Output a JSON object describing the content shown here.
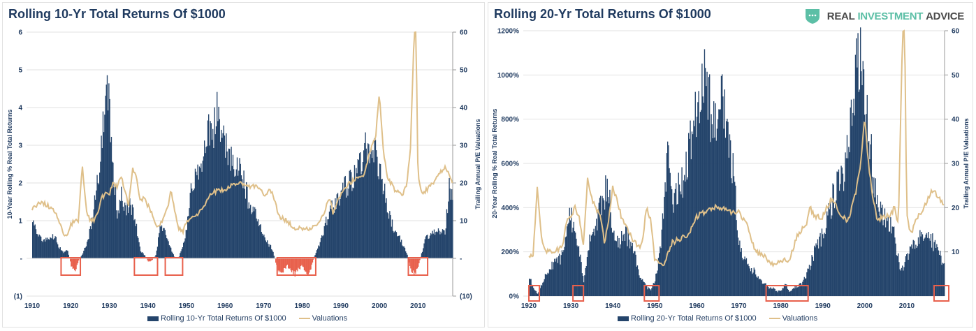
{
  "colors": {
    "bar": "#24446b",
    "negative": "#e8604c",
    "valuation": "#dfc08a",
    "title": "#1f3a5f",
    "grid": "#e2e2e2",
    "highlight_box": "#e8604c"
  },
  "logo": {
    "icon": "shield-chat-icon",
    "word1": "REAL",
    "word2": "INVESTMENT",
    "word3": "ADVICE"
  },
  "chart_data": [
    {
      "type": "bar",
      "title": "Rolling 10-Yr Total Returns Of $1000",
      "ylabel": "10-Year Rolling % Real Total Returns",
      "y2label": "Trailing Annual P/E Valuations",
      "ylim": [
        -1,
        6
      ],
      "y2lim": [
        -10,
        60
      ],
      "yticks": [
        "(1)",
        "-",
        "1",
        "2",
        "3",
        "4",
        "5",
        "6"
      ],
      "y2ticks": [
        "(10)",
        "-",
        "10",
        "20",
        "30",
        "40",
        "50",
        "60"
      ],
      "xticks": [
        "1910",
        "1920",
        "1930",
        "1940",
        "1950",
        "1960",
        "1970",
        "1980",
        "1990",
        "2000",
        "2010"
      ],
      "xlim": [
        1910,
        2019
      ],
      "grid": true,
      "legend_position": "bottom",
      "legend": [
        "Rolling 10-Yr Total Returns Of $1000",
        "Valuations"
      ],
      "series": [
        {
          "name": "Rolling 10-Yr Total Returns Of $1000",
          "kind": "bar",
          "x": [
            1910,
            1911,
            1912,
            1913,
            1914,
            1915,
            1916,
            1917,
            1918,
            1919,
            1920,
            1921,
            1922,
            1923,
            1924,
            1925,
            1926,
            1927,
            1928,
            1929,
            1930,
            1931,
            1932,
            1933,
            1934,
            1935,
            1936,
            1937,
            1938,
            1939,
            1940,
            1941,
            1942,
            1943,
            1944,
            1945,
            1946,
            1947,
            1948,
            1949,
            1950,
            1951,
            1952,
            1953,
            1954,
            1955,
            1956,
            1957,
            1958,
            1959,
            1960,
            1961,
            1962,
            1963,
            1964,
            1965,
            1966,
            1967,
            1968,
            1969,
            1970,
            1971,
            1972,
            1973,
            1974,
            1975,
            1976,
            1977,
            1978,
            1979,
            1980,
            1981,
            1982,
            1983,
            1984,
            1985,
            1986,
            1987,
            1988,
            1989,
            1990,
            1991,
            1992,
            1993,
            1994,
            1995,
            1996,
            1997,
            1998,
            1999,
            2000,
            2001,
            2002,
            2003,
            2004,
            2005,
            2006,
            2007,
            2008,
            2009,
            2010,
            2011,
            2012,
            2013,
            2014,
            2015,
            2016,
            2017,
            2018,
            2019
          ],
          "values": [
            1.0,
            0.75,
            0.55,
            0.5,
            0.5,
            0.6,
            0.55,
            0.3,
            0.15,
            0.25,
            -0.2,
            -0.4,
            -0.05,
            0.15,
            0.4,
            0.8,
            1.5,
            2.2,
            3.2,
            4.8,
            4.3,
            2.4,
            1.2,
            2.0,
            1.3,
            1.6,
            1.4,
            0.8,
            0.2,
            0.1,
            -0.1,
            -0.05,
            0.1,
            0.8,
            0.9,
            0.6,
            0.2,
            0.0,
            0.05,
            0.4,
            0.9,
            1.8,
            2.4,
            2.3,
            2.7,
            3.2,
            3.8,
            3.6,
            4.2,
            3.5,
            3.2,
            3.0,
            2.8,
            2.6,
            2.5,
            2.0,
            1.6,
            1.3,
            1.2,
            0.9,
            0.7,
            0.4,
            0.3,
            -0.1,
            -0.4,
            -0.35,
            -0.2,
            -0.35,
            -0.45,
            -0.3,
            -0.2,
            -0.45,
            -0.35,
            0.05,
            0.3,
            0.6,
            1.0,
            1.3,
            1.5,
            1.6,
            1.9,
            2.0,
            2.1,
            2.3,
            2.5,
            2.7,
            3.0,
            3.2,
            3.1,
            2.9,
            2.5,
            2.0,
            1.4,
            1.0,
            0.8,
            0.6,
            0.4,
            0.15,
            -0.3,
            -0.45,
            -0.2,
            0.2,
            0.6,
            0.7,
            0.7,
            0.75,
            0.7,
            0.8,
            2.0,
            1.5
          ]
        },
        {
          "name": "Valuations",
          "kind": "line",
          "axis": "right",
          "x": [
            1910,
            1912,
            1914,
            1916,
            1917,
            1918,
            1919,
            1920,
            1921,
            1922,
            1923,
            1924,
            1925,
            1926,
            1927,
            1928,
            1929,
            1930,
            1931,
            1932,
            1933,
            1934,
            1935,
            1936,
            1937,
            1938,
            1939,
            1940,
            1941,
            1942,
            1943,
            1944,
            1945,
            1946,
            1947,
            1948,
            1949,
            1950,
            1952,
            1954,
            1956,
            1958,
            1960,
            1962,
            1964,
            1966,
            1968,
            1970,
            1972,
            1974,
            1976,
            1978,
            1980,
            1982,
            1984,
            1986,
            1987,
            1988,
            1990,
            1992,
            1994,
            1996,
            1998,
            1999,
            2000,
            2001,
            2002,
            2003,
            2004,
            2006,
            2007,
            2008,
            2009,
            2009.5,
            2010,
            2011,
            2012,
            2014,
            2016,
            2017,
            2018,
            2019
          ],
          "values": [
            13,
            15,
            14,
            12,
            10,
            7,
            6,
            9,
            10,
            9.5,
            25,
            13,
            10,
            10,
            12,
            16,
            17,
            17,
            20,
            19,
            22,
            18,
            14,
            24,
            22,
            15,
            16,
            14,
            12,
            9,
            8,
            11,
            13,
            18,
            12,
            8,
            7,
            10,
            11,
            13,
            17,
            18,
            18,
            20,
            20,
            19,
            19,
            17,
            18,
            11,
            10,
            8,
            8,
            8,
            9,
            13,
            16,
            12,
            17,
            20,
            21,
            22,
            30,
            32,
            44,
            29,
            22,
            20,
            18,
            17,
            19,
            28,
            60,
            60,
            22,
            17,
            18,
            20,
            23,
            24,
            23,
            20
          ]
        }
      ],
      "highlight_boxes": [
        [
          1917.5,
          1922.5
        ],
        [
          1936.5,
          1942.5
        ],
        [
          1944.5,
          1949
        ],
        [
          1973.5,
          1983.5
        ],
        [
          2007.5,
          2012.5
        ]
      ]
    },
    {
      "type": "bar",
      "title": "Rolling 20-Yr Total Returns Of $1000",
      "ylabel": "20-Year Rolling % Real Total Returns",
      "y2label": "Trailing Annual P/E Valuations",
      "ylim": [
        0,
        1200
      ],
      "y2lim": [
        0,
        60
      ],
      "yticks": [
        "0%",
        "200%",
        "400%",
        "600%",
        "800%",
        "1000%",
        "1200%"
      ],
      "y2ticks": [
        "10",
        "20",
        "30",
        "40",
        "50",
        "60"
      ],
      "xticks": [
        "1920",
        "1930",
        "1940",
        "1950",
        "1960",
        "1970",
        "1980",
        "1990",
        "2000",
        "2010"
      ],
      "xlim": [
        1920,
        2019
      ],
      "grid": true,
      "legend_position": "bottom",
      "legend": [
        "Rolling 20-Yr Total Returns Of $1000",
        "Valuations"
      ],
      "series": [
        {
          "name": "Rolling 20-Yr Total Returns Of $1000",
          "kind": "bar",
          "x": [
            1920,
            1921,
            1922,
            1923,
            1924,
            1925,
            1926,
            1927,
            1928,
            1929,
            1930,
            1931,
            1932,
            1933,
            1934,
            1935,
            1936,
            1937,
            1938,
            1939,
            1940,
            1941,
            1942,
            1943,
            1944,
            1945,
            1946,
            1947,
            1948,
            1949,
            1950,
            1951,
            1952,
            1953,
            1954,
            1955,
            1956,
            1957,
            1958,
            1959,
            1960,
            1961,
            1962,
            1963,
            1964,
            1965,
            1966,
            1967,
            1968,
            1969,
            1970,
            1971,
            1972,
            1973,
            1974,
            1975,
            1976,
            1977,
            1978,
            1979,
            1980,
            1981,
            1982,
            1983,
            1984,
            1985,
            1986,
            1987,
            1988,
            1989,
            1990,
            1991,
            1992,
            1993,
            1994,
            1995,
            1996,
            1997,
            1998,
            1999,
            2000,
            2001,
            2002,
            2003,
            2004,
            2005,
            2006,
            2007,
            2008,
            2009,
            2010,
            2011,
            2012,
            2013,
            2014,
            2015,
            2016,
            2017,
            2018,
            2019
          ],
          "values": [
            100,
            40,
            10,
            60,
            100,
            130,
            160,
            170,
            200,
            350,
            380,
            300,
            200,
            60,
            250,
            300,
            350,
            420,
            500,
            480,
            320,
            250,
            280,
            300,
            250,
            200,
            120,
            80,
            40,
            30,
            80,
            200,
            400,
            680,
            450,
            500,
            520,
            600,
            700,
            800,
            900,
            980,
            1100,
            900,
            800,
            900,
            950,
            850,
            700,
            500,
            250,
            180,
            150,
            130,
            110,
            80,
            60,
            40,
            40,
            20,
            30,
            60,
            20,
            40,
            50,
            60,
            100,
            150,
            220,
            260,
            300,
            400,
            450,
            500,
            550,
            600,
            700,
            900,
            1100,
            1180,
            1000,
            800,
            550,
            500,
            420,
            380,
            350,
            300,
            160,
            120,
            200,
            220,
            250,
            270,
            300,
            280,
            260,
            220,
            180,
            150
          ]
        },
        {
          "name": "Valuations",
          "kind": "line",
          "axis": "right",
          "x": [
            1920,
            1921,
            1922,
            1923,
            1924,
            1926,
            1928,
            1929,
            1930,
            1931,
            1932,
            1933,
            1934,
            1935,
            1936,
            1937,
            1938,
            1939,
            1940,
            1942,
            1944,
            1946,
            1947,
            1948,
            1949,
            1950,
            1952,
            1954,
            1956,
            1958,
            1960,
            1962,
            1964,
            1966,
            1968,
            1970,
            1972,
            1974,
            1976,
            1978,
            1980,
            1982,
            1984,
            1986,
            1987,
            1988,
            1990,
            1992,
            1994,
            1996,
            1998,
            1999,
            2000,
            2001,
            2002,
            2003,
            2004,
            2006,
            2007,
            2008,
            2009,
            2009.5,
            2010,
            2011,
            2012,
            2014,
            2016,
            2017,
            2018,
            2019
          ],
          "values": [
            9,
            9,
            25,
            13,
            10,
            10,
            11,
            17,
            18,
            20,
            18,
            11,
            27,
            22,
            20,
            18,
            12,
            17,
            25,
            18,
            14,
            11,
            12,
            20,
            17,
            8,
            7,
            12,
            13,
            14,
            18,
            19,
            20,
            20,
            19,
            19,
            16,
            10,
            9,
            7,
            8,
            8,
            14,
            16,
            20,
            18,
            18,
            22,
            19,
            17,
            24,
            30,
            40,
            29,
            22,
            17,
            18,
            18,
            20,
            16,
            60,
            60,
            18,
            14,
            17,
            20,
            24,
            23,
            22,
            20
          ]
        }
      ],
      "highlight_boxes": [
        [
          1920,
          1922.5
        ],
        [
          1930.5,
          1933
        ],
        [
          1947.5,
          1951
        ],
        [
          1976.5,
          1986.5
        ],
        [
          2016.5,
          2020
        ]
      ]
    }
  ]
}
